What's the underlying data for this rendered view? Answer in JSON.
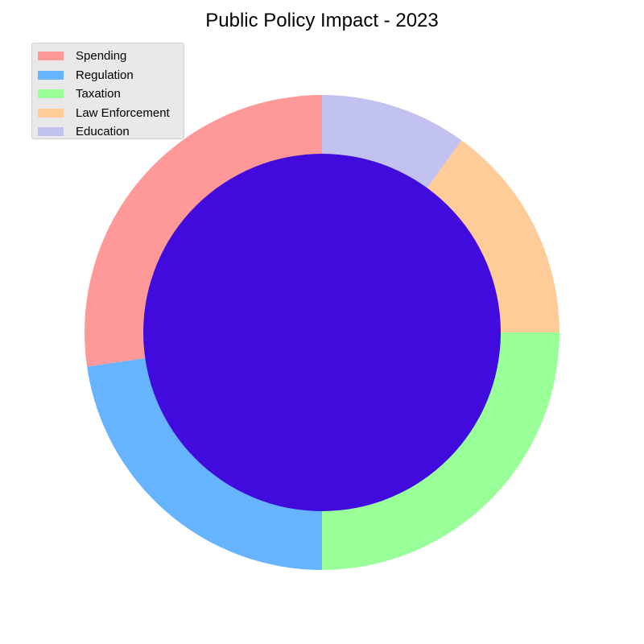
{
  "chart_data": {
    "type": "pie",
    "title": "Public Policy Impact - 2023",
    "categories": [
      "Spending",
      "Regulation",
      "Taxation",
      "Law Enforcement",
      "Education"
    ],
    "values": [
      27.3,
      22.7,
      25,
      15,
      10
    ],
    "colors": [
      "#ff9999",
      "#66b3ff",
      "#99ff99",
      "#ffcc99",
      "#c2c2f0"
    ],
    "start_angle": 90,
    "direction": "counterclockwise",
    "center_color": "#400bdc",
    "legend_position": "upper-left",
    "donut": true
  }
}
